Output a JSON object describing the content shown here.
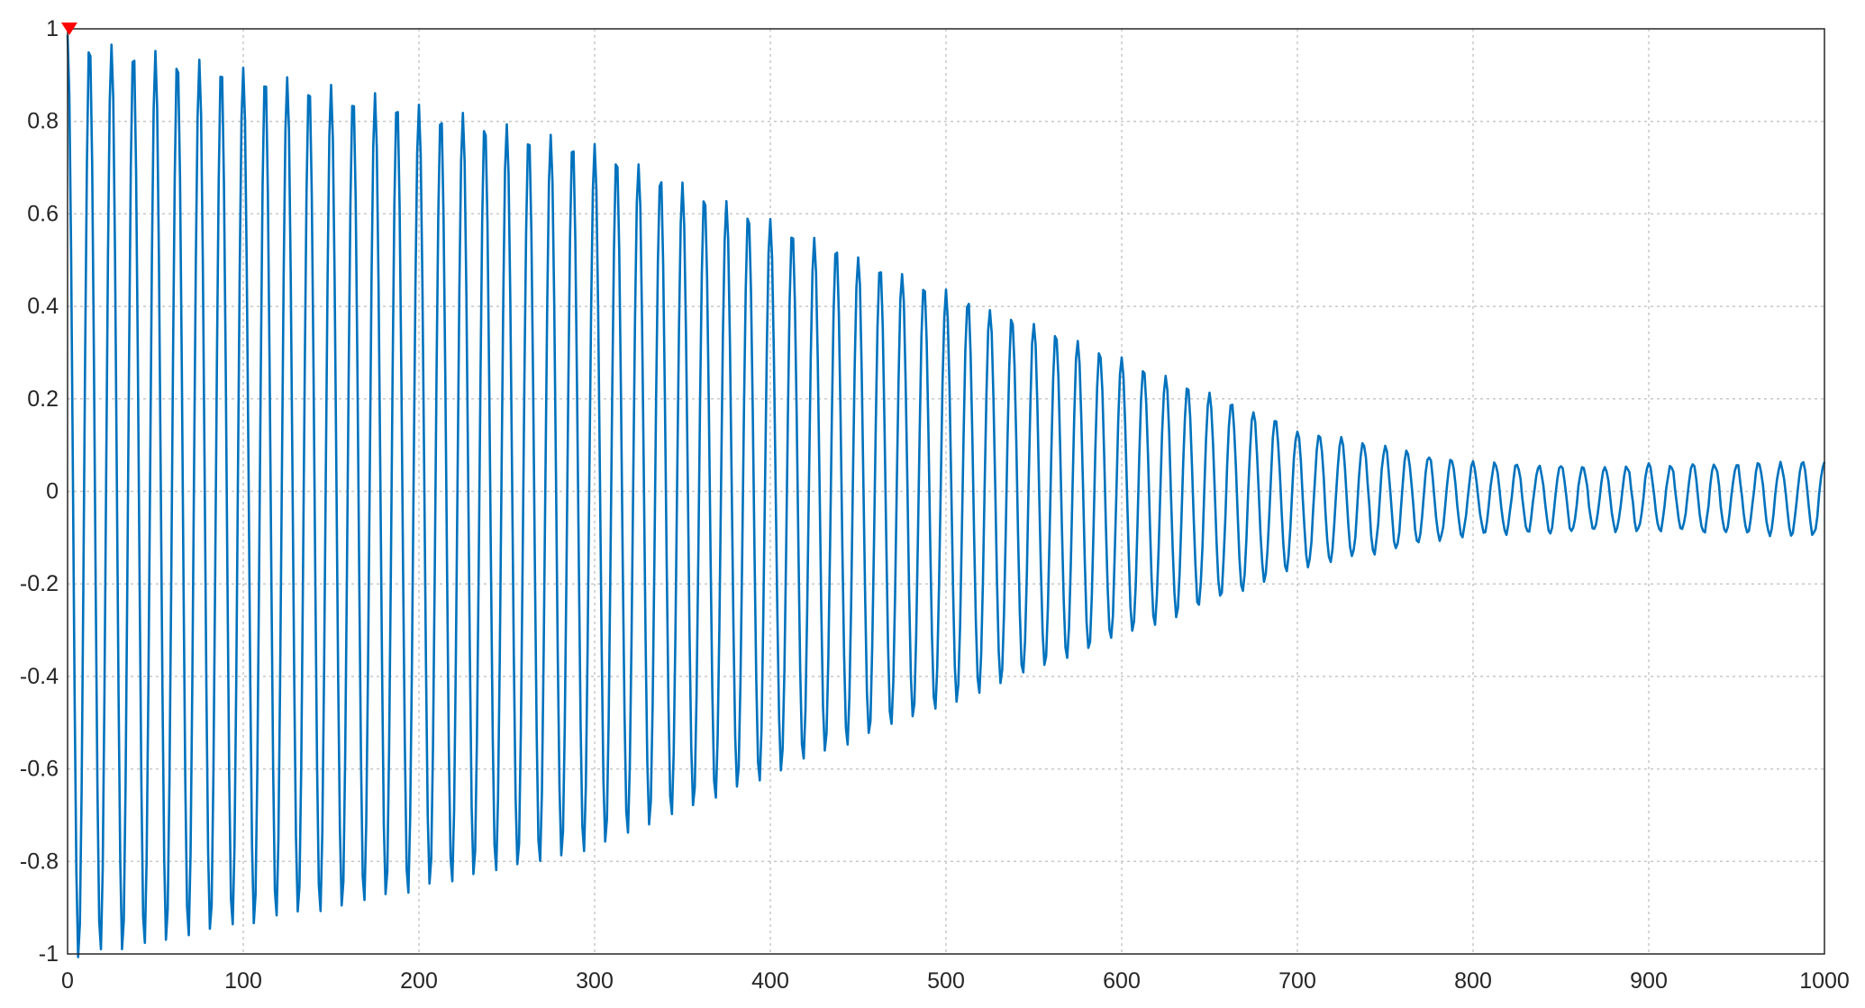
{
  "chart_data": {
    "type": "line",
    "title": "",
    "xlabel": "",
    "ylabel": "",
    "xlim": [
      0,
      1000
    ],
    "ylim": [
      -1,
      1
    ],
    "grid": true,
    "legend": "none",
    "x_ticks": [
      "0",
      "100",
      "200",
      "300",
      "400",
      "500",
      "600",
      "700",
      "800",
      "900",
      "1000"
    ],
    "y_ticks": [
      "1",
      "0.8",
      "0.6",
      "0.4",
      "0.2",
      "0",
      "-0.2",
      "-0.4",
      "-0.6",
      "-0.8",
      "-1"
    ],
    "series": [
      {
        "color": "#0072BD",
        "signal": {
          "form": "damped cosine oscillation with noise",
          "oscillation_period": 12.5,
          "samples": 1000,
          "envelope_points": [
            {
              "x": 0,
              "amplitude": 1.0
            },
            {
              "x": 100,
              "amplitude": 0.93
            },
            {
              "x": 200,
              "amplitude": 0.85
            },
            {
              "x": 300,
              "amplitude": 0.76
            },
            {
              "x": 400,
              "amplitude": 0.6
            },
            {
              "x": 500,
              "amplitude": 0.45
            },
            {
              "x": 600,
              "amplitude": 0.3
            },
            {
              "x": 700,
              "amplitude": 0.15
            },
            {
              "x": 800,
              "amplitude": 0.075
            },
            {
              "x": 900,
              "amplitude": 0.07
            },
            {
              "x": 1000,
              "amplitude": 0.08
            }
          ],
          "baseline_offset": -0.015
        }
      }
    ],
    "marker": {
      "x": 1,
      "y": 1,
      "shape": "triangle-down",
      "color": "#FF0000"
    }
  }
}
